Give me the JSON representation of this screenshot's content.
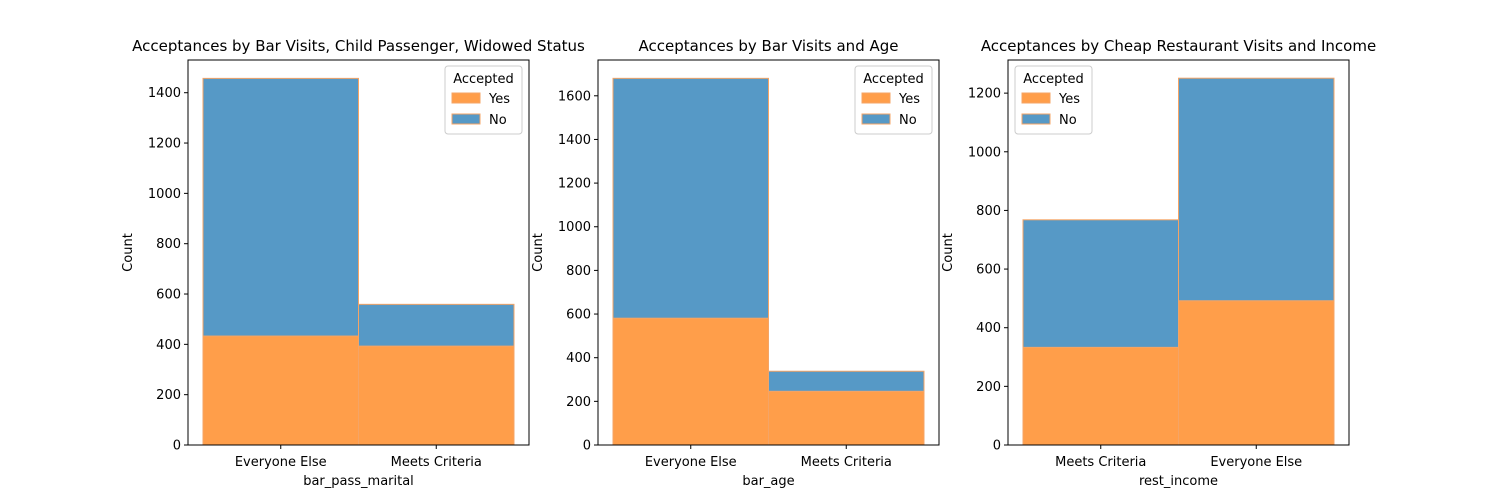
{
  "colors": {
    "yes": "#ff9e4a",
    "no": "#5699c6",
    "edge": "#f4a466"
  },
  "chart_data": [
    {
      "type": "bar",
      "stacked": true,
      "title": "Acceptances by Bar Visits, Child Passenger, Widowed Status",
      "xlabel": "bar_pass_marital",
      "ylabel": "Count",
      "categories": [
        "Everyone Else",
        "Meets Criteria"
      ],
      "series": [
        {
          "name": "Yes",
          "values": [
            433,
            393
          ]
        },
        {
          "name": "No",
          "values": [
            1024,
            166
          ]
        }
      ],
      "ylim": [
        0,
        1530
      ],
      "yticks": [
        0,
        200,
        400,
        600,
        800,
        1000,
        1200,
        1400
      ],
      "legend": {
        "title": "Accepted",
        "position": "top-right"
      },
      "grid": false
    },
    {
      "type": "bar",
      "stacked": true,
      "title": "Acceptances by Bar Visits and Age",
      "xlabel": "bar_age",
      "ylabel": "Count",
      "categories": [
        "Everyone Else",
        "Meets Criteria"
      ],
      "series": [
        {
          "name": "Yes",
          "values": [
            581,
            246
          ]
        },
        {
          "name": "No",
          "values": [
            1099,
            92
          ]
        }
      ],
      "ylim": [
        0,
        1764
      ],
      "yticks": [
        0,
        200,
        400,
        600,
        800,
        1000,
        1200,
        1400,
        1600
      ],
      "legend": {
        "title": "Accepted",
        "position": "top-right"
      },
      "grid": false
    },
    {
      "type": "bar",
      "stacked": true,
      "title": "Acceptances by Cheap Restaurant Visits and Income",
      "xlabel": "rest_income",
      "ylabel": "Count",
      "categories": [
        "Meets Criteria",
        "Everyone Else"
      ],
      "series": [
        {
          "name": "Yes",
          "values": [
            333,
            492
          ]
        },
        {
          "name": "No",
          "values": [
            435,
            759
          ]
        }
      ],
      "ylim": [
        0,
        1313
      ],
      "yticks": [
        0,
        200,
        400,
        600,
        800,
        1000,
        1200
      ],
      "legend": {
        "title": "Accepted",
        "position": "top-left"
      },
      "grid": false
    }
  ]
}
